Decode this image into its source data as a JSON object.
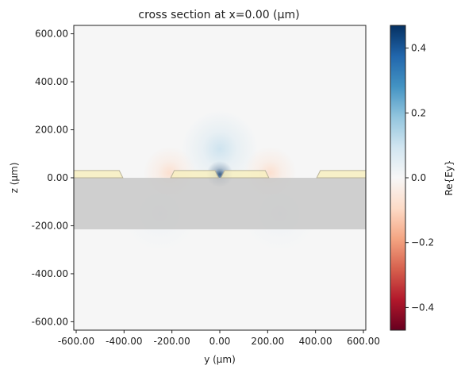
{
  "chart_data": {
    "type": "heatmap",
    "title": "cross section at x=0.00 (μm)",
    "xlabel": "y (μm)",
    "ylabel": "z (μm)",
    "xlim": [
      -610,
      610
    ],
    "ylim": [
      -635,
      635
    ],
    "x_ticks": [
      "-600.00",
      "-400.00",
      "-200.00",
      "0.00",
      "200.00",
      "400.00",
      "600.00"
    ],
    "x_tick_values": [
      -600,
      -400,
      -200,
      0,
      200,
      400,
      600
    ],
    "y_ticks": [
      "600.00",
      "400.00",
      "200.00",
      "0.00",
      "-200.00",
      "-400.00",
      "-600.00"
    ],
    "y_tick_values": [
      600,
      400,
      200,
      0,
      -200,
      -400,
      -600
    ],
    "colorbar": {
      "label": "Re{Ey}",
      "ticks": [
        "0.4",
        "0.2",
        "0.0",
        "−0.2",
        "−0.4"
      ],
      "tick_values": [
        0.4,
        0.2,
        0.0,
        -0.2,
        -0.4
      ],
      "range": [
        -0.47,
        0.47
      ],
      "colormap": "RdBu"
    },
    "substrate": {
      "z_top": 0,
      "z_bottom": -215,
      "color": "#c8c8c8"
    },
    "electrodes": {
      "z_bottom": 0,
      "z_top": 30,
      "color": "#f7efc0",
      "edge_color": "#b9b39a",
      "segments": [
        {
          "y_bottom": [
            -610,
            -405
          ],
          "y_top": [
            -610,
            -420
          ]
        },
        {
          "y_bottom": [
            -205,
            -5
          ],
          "y_top": [
            -190,
            -20
          ]
        },
        {
          "y_bottom": [
            5,
            205
          ],
          "y_top": [
            20,
            190
          ]
        },
        {
          "y_bottom": [
            405,
            610
          ],
          "y_top": [
            420,
            610
          ]
        }
      ]
    },
    "field_features": [
      {
        "y": 0,
        "z": 15,
        "value": 0.47,
        "spread": 55
      },
      {
        "y": 0,
        "z": 120,
        "value": 0.1,
        "spread": 160
      },
      {
        "y": -210,
        "z": 20,
        "value": -0.08,
        "spread": 110
      },
      {
        "y": 210,
        "z": 20,
        "value": -0.08,
        "spread": 110
      },
      {
        "y": -250,
        "z": -150,
        "value": 0.03,
        "spread": 160
      },
      {
        "y": 250,
        "z": -150,
        "value": 0.03,
        "spread": 160
      }
    ]
  }
}
